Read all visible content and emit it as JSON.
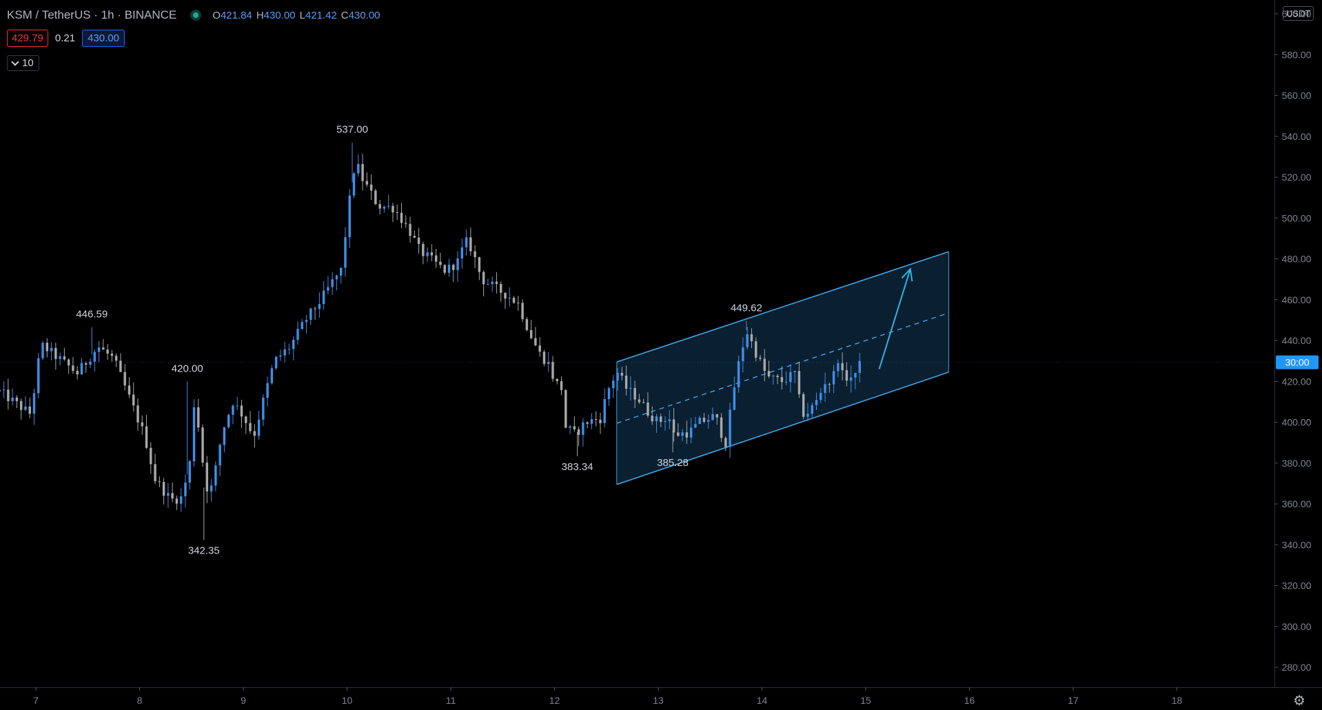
{
  "header": {
    "symbol": "KSM / TetherUS · 1h · BINANCE",
    "open_label": "O",
    "open": "421.84",
    "high_label": "H",
    "high": "430.00",
    "low_label": "L",
    "low": "421.42",
    "close_label": "C",
    "close": "430.00"
  },
  "quotes": {
    "bid": "429.79",
    "spread": "0.21",
    "ask": "430.00"
  },
  "indicator": {
    "value": "10"
  },
  "price_axis": {
    "unit": "USDT",
    "current_price_label": "30:00"
  },
  "colors": {
    "background": "#000000",
    "up_candle": "#3d8fe8",
    "down_candle": "#a8a8a8",
    "channel_line": "#3fa6e8",
    "channel_fill": "#0c2538",
    "arrow": "#2bb6e6",
    "axis_text": "#7f8490",
    "price_tag": "#2196f3",
    "bid": "#f23645",
    "ask": "#2962ff",
    "status_dot": "#26a69a"
  },
  "icons": {
    "status": "status-dot-icon",
    "indicator_toggle": "chevron-down-icon",
    "settings": "gear-icon"
  },
  "chart_data": {
    "type": "candlestick",
    "pair": "KSM / TetherUS",
    "interval": "1h",
    "exchange": "BINANCE",
    "x_tick_labels": [
      "7",
      "8",
      "9",
      "10",
      "11",
      "12",
      "13",
      "14",
      "15",
      "16",
      "17",
      "18"
    ],
    "y_tick_labels": [
      "280.00",
      "300.00",
      "320.00",
      "340.00",
      "360.00",
      "380.00",
      "400.00",
      "420.00",
      "440.00",
      "460.00",
      "480.00",
      "500.00",
      "520.00",
      "540.00",
      "560.00",
      "580.00",
      "600.00"
    ],
    "ylim": [
      268,
      610
    ],
    "xlim": [
      6.65,
      18.98
    ],
    "price_anchors": [
      {
        "t": 6.65,
        "p": 415
      },
      {
        "t": 6.95,
        "p": 404
      },
      {
        "t": 7.05,
        "p": 438
      },
      {
        "t": 7.25,
        "p": 430
      },
      {
        "t": 7.4,
        "p": 424
      },
      {
        "t": 7.6,
        "p": 437
      },
      {
        "t": 7.75,
        "p": 431
      },
      {
        "t": 7.9,
        "p": 412
      },
      {
        "t": 8.05,
        "p": 393
      },
      {
        "t": 8.15,
        "p": 372
      },
      {
        "t": 8.3,
        "p": 362
      },
      {
        "t": 8.4,
        "p": 363
      },
      {
        "t": 8.45,
        "p": 372
      },
      {
        "t": 8.5,
        "p": 384
      },
      {
        "t": 8.5,
        "p": 415
      },
      {
        "t": 8.6,
        "p": 390
      },
      {
        "t": 8.62,
        "p": 368
      },
      {
        "t": 8.7,
        "p": 368
      },
      {
        "t": 8.8,
        "p": 396
      },
      {
        "t": 8.9,
        "p": 410
      },
      {
        "t": 9.0,
        "p": 403
      },
      {
        "t": 9.1,
        "p": 393
      },
      {
        "t": 9.2,
        "p": 412
      },
      {
        "t": 9.3,
        "p": 430
      },
      {
        "t": 9.45,
        "p": 437
      },
      {
        "t": 9.6,
        "p": 450
      },
      {
        "t": 9.75,
        "p": 460
      },
      {
        "t": 9.85,
        "p": 468
      },
      {
        "t": 9.95,
        "p": 475
      },
      {
        "t": 10.0,
        "p": 500
      },
      {
        "t": 10.08,
        "p": 528
      },
      {
        "t": 10.15,
        "p": 519
      },
      {
        "t": 10.3,
        "p": 506
      },
      {
        "t": 10.45,
        "p": 505
      },
      {
        "t": 10.6,
        "p": 494
      },
      {
        "t": 10.7,
        "p": 484
      },
      {
        "t": 10.85,
        "p": 478
      },
      {
        "t": 10.95,
        "p": 474
      },
      {
        "t": 11.1,
        "p": 480
      },
      {
        "t": 11.12,
        "p": 490
      },
      {
        "t": 11.2,
        "p": 485
      },
      {
        "t": 11.3,
        "p": 470
      },
      {
        "t": 11.45,
        "p": 465
      },
      {
        "t": 11.55,
        "p": 462
      },
      {
        "t": 11.65,
        "p": 458
      },
      {
        "t": 11.75,
        "p": 445
      },
      {
        "t": 11.85,
        "p": 434
      },
      {
        "t": 11.95,
        "p": 428
      },
      {
        "t": 12.0,
        "p": 420
      },
      {
        "t": 12.08,
        "p": 416
      },
      {
        "t": 12.1,
        "p": 398
      },
      {
        "t": 12.2,
        "p": 394
      },
      {
        "t": 12.3,
        "p": 400
      },
      {
        "t": 12.45,
        "p": 402
      },
      {
        "t": 12.5,
        "p": 414
      },
      {
        "t": 12.6,
        "p": 425
      },
      {
        "t": 12.7,
        "p": 416
      },
      {
        "t": 12.8,
        "p": 412
      },
      {
        "t": 12.9,
        "p": 405
      },
      {
        "t": 13.0,
        "p": 400
      },
      {
        "t": 13.1,
        "p": 403
      },
      {
        "t": 13.15,
        "p": 394
      },
      {
        "t": 13.3,
        "p": 395
      },
      {
        "t": 13.4,
        "p": 400
      },
      {
        "t": 13.55,
        "p": 403
      },
      {
        "t": 13.62,
        "p": 393
      },
      {
        "t": 13.65,
        "p": 390
      },
      {
        "t": 13.75,
        "p": 423
      },
      {
        "t": 13.85,
        "p": 445
      },
      {
        "t": 13.95,
        "p": 433
      },
      {
        "t": 14.05,
        "p": 422
      },
      {
        "t": 14.2,
        "p": 420
      },
      {
        "t": 14.32,
        "p": 424
      },
      {
        "t": 14.38,
        "p": 404
      },
      {
        "t": 14.45,
        "p": 405
      },
      {
        "t": 14.55,
        "p": 412
      },
      {
        "t": 14.6,
        "p": 420
      },
      {
        "t": 14.68,
        "p": 419
      },
      {
        "t": 14.72,
        "p": 434
      },
      {
        "t": 14.78,
        "p": 422
      },
      {
        "t": 14.9,
        "p": 422
      },
      {
        "t": 14.96,
        "p": 430
      }
    ],
    "extremes": [
      {
        "label": "446.59",
        "t": 7.54,
        "price": 446.59,
        "position": "above"
      },
      {
        "label": "420.00",
        "t": 8.46,
        "price": 420.0,
        "position": "above"
      },
      {
        "label": "342.35",
        "t": 8.62,
        "price": 342.35,
        "position": "below"
      },
      {
        "label": "537.00",
        "t": 10.05,
        "price": 537.0,
        "position": "above"
      },
      {
        "label": "383.34",
        "t": 12.22,
        "price": 383.34,
        "position": "below"
      },
      {
        "label": "385.28",
        "t": 13.14,
        "price": 385.28,
        "position": "below"
      },
      {
        "label": "449.62",
        "t": 13.85,
        "price": 449.62,
        "position": "above"
      }
    ],
    "channel": {
      "t_start": 12.6,
      "t_end": 15.8,
      "upper": [
        429.5,
        483.5
      ],
      "mid": [
        399.5,
        453.5
      ],
      "lower": [
        369.5,
        424.5
      ]
    },
    "arrow": {
      "from": {
        "t": 15.13,
        "p": 426
      },
      "to": {
        "t": 15.43,
        "p": 475
      }
    },
    "current_price": 430.0
  }
}
